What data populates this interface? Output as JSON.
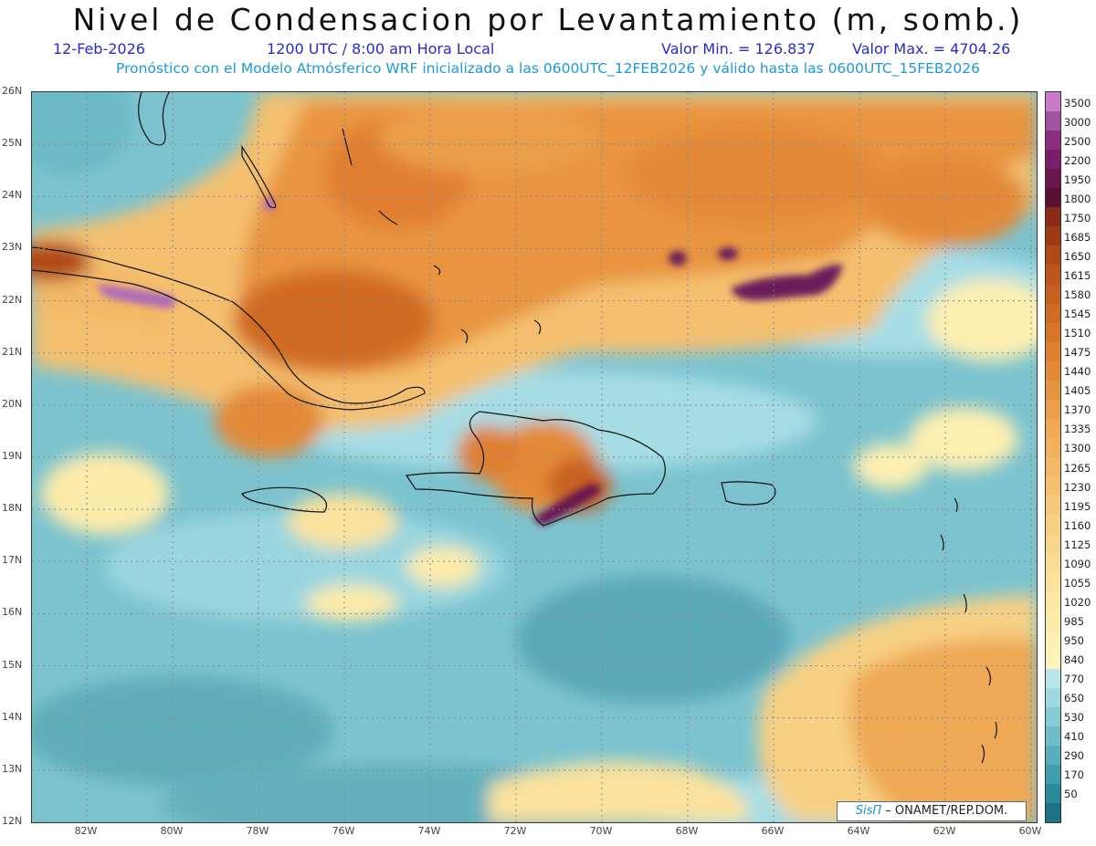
{
  "header": {
    "title": "Nivel de Condensacion por Levantamiento (m, somb.)",
    "date": "12-Feb-2026",
    "time": "1200 UTC / 8:00 am Hora Local",
    "min_label": "Valor Min. = 126.837",
    "max_label": "Valor Max. = 4704.26",
    "subtitle": "Pronóstico con el Modelo Atmósferico WRF inicializado a las 0600UTC_12FEB2026 y válido hasta las  0600UTC_15FEB2026"
  },
  "map": {
    "lat_labels": [
      "26N",
      "25N",
      "24N",
      "23N",
      "22N",
      "21N",
      "20N",
      "19N",
      "18N",
      "17N",
      "16N",
      "15N",
      "14N",
      "13N",
      "12N"
    ],
    "lon_labels": [
      "82W",
      "80W",
      "78W",
      "76W",
      "74W",
      "72W",
      "70W",
      "68W",
      "66W",
      "64W",
      "62W",
      "60W"
    ],
    "credit_brand": "SisΠ",
    "credit_text": " – ONAMET/REP.DOM."
  },
  "colorbar": {
    "levels": [
      {
        "label": "3500",
        "color": "#c77bc8"
      },
      {
        "label": "3000",
        "color": "#a452a4"
      },
      {
        "label": "2500",
        "color": "#8a2e84"
      },
      {
        "label": "2200",
        "color": "#7a1e6a"
      },
      {
        "label": "1950",
        "color": "#681550"
      },
      {
        "label": "1800",
        "color": "#5a1030"
      },
      {
        "label": "1750",
        "color": "#8a2a18"
      },
      {
        "label": "1685",
        "color": "#9e3a16"
      },
      {
        "label": "1650",
        "color": "#b04a18"
      },
      {
        "label": "1615",
        "color": "#bd561c"
      },
      {
        "label": "1580",
        "color": "#c76020"
      },
      {
        "label": "1545",
        "color": "#d06a24"
      },
      {
        "label": "1510",
        "color": "#d8752a"
      },
      {
        "label": "1475",
        "color": "#df7f30"
      },
      {
        "label": "1440",
        "color": "#e38a38"
      },
      {
        "label": "1405",
        "color": "#e79440"
      },
      {
        "label": "1370",
        "color": "#eb9e4a"
      },
      {
        "label": "1335",
        "color": "#efa854"
      },
      {
        "label": "1300",
        "color": "#f1b05c"
      },
      {
        "label": "1265",
        "color": "#f3b866"
      },
      {
        "label": "1230",
        "color": "#f4c070"
      },
      {
        "label": "1195",
        "color": "#f6c87a"
      },
      {
        "label": "1160",
        "color": "#f7d084"
      },
      {
        "label": "1125",
        "color": "#f8d68c"
      },
      {
        "label": "1090",
        "color": "#f9dc94"
      },
      {
        "label": "1055",
        "color": "#fae29c"
      },
      {
        "label": "1020",
        "color": "#fbe6a2"
      },
      {
        "label": "985",
        "color": "#fcebaa"
      },
      {
        "label": "950",
        "color": "#fdefb0"
      },
      {
        "label": "840",
        "color": "#fdf3b8"
      },
      {
        "label": "770",
        "color": "#b8e6ec"
      },
      {
        "label": "650",
        "color": "#9ed9e2"
      },
      {
        "label": "530",
        "color": "#86ccd6"
      },
      {
        "label": "410",
        "color": "#6fbdc9"
      },
      {
        "label": "290",
        "color": "#58aebc"
      },
      {
        "label": "170",
        "color": "#409dad"
      },
      {
        "label": "50",
        "color": "#2a8a9c"
      }
    ],
    "bottom_color": "#1e7486"
  }
}
